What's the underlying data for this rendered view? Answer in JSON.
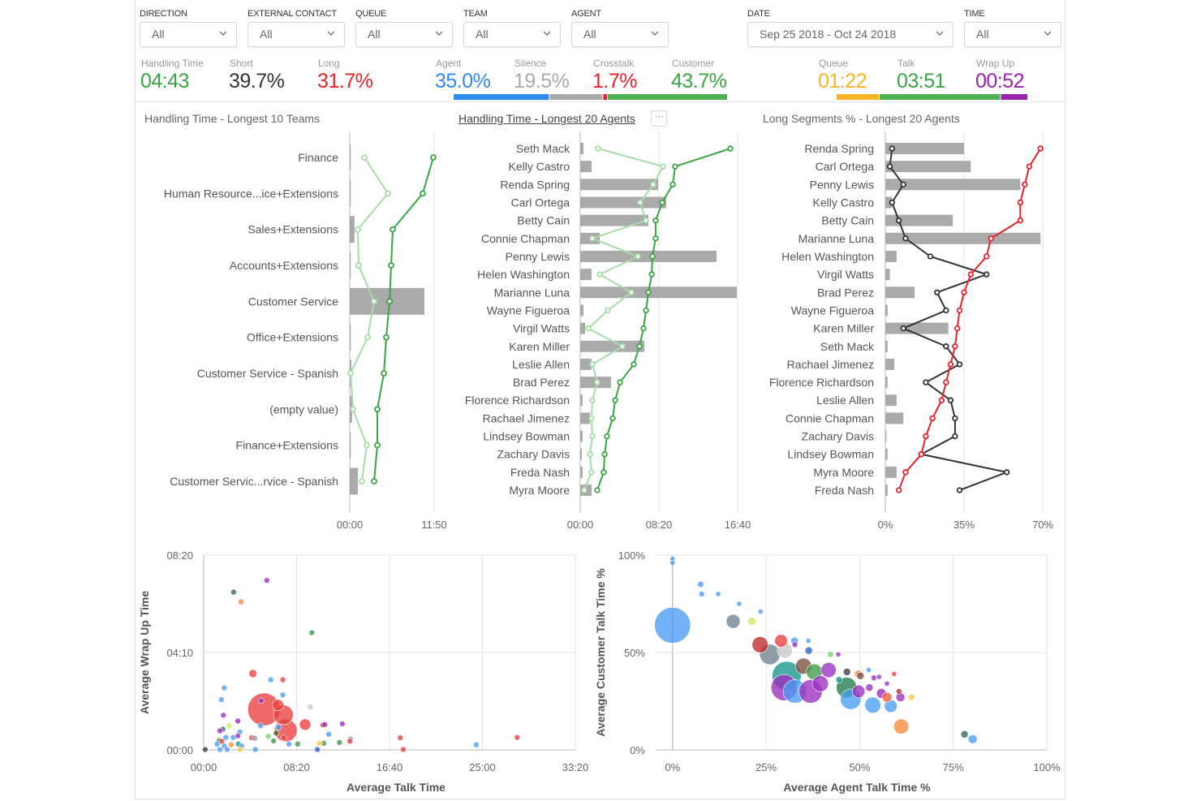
{
  "filters": [
    {
      "label": "DIRECTION",
      "value": "All"
    },
    {
      "label": "EXTERNAL CONTACT",
      "value": "All"
    },
    {
      "label": "QUEUE",
      "value": "All"
    },
    {
      "label": "TEAM",
      "value": "All"
    },
    {
      "label": "AGENT",
      "value": "All"
    },
    {
      "label": "DATE",
      "value": "Sep 25 2018 - Oct 24 2018"
    },
    {
      "label": "TIME",
      "value": "All"
    }
  ],
  "kpis": [
    {
      "label": "Handling Time",
      "value": "04:43",
      "color": "#3aa543"
    },
    {
      "label": "Short",
      "value": "39.7%",
      "color": "#333333"
    },
    {
      "label": "Long",
      "value": "31.7%",
      "color": "#e8222a"
    },
    {
      "label": "Agent",
      "value": "35.0%",
      "color": "#2f8bef"
    },
    {
      "label": "Silence",
      "value": "19.5%",
      "color": "#aaaaaa"
    },
    {
      "label": "Crosstalk",
      "value": "1.7%",
      "color": "#e8222a"
    },
    {
      "label": "Customer",
      "value": "43.7%",
      "color": "#3aa543"
    },
    {
      "label": "Queue",
      "value": "01:22",
      "color": "#fbb424"
    },
    {
      "label": "Talk",
      "value": "03:51",
      "color": "#3aa543"
    },
    {
      "label": "Wrap Up",
      "value": "00:52",
      "color": "#9b22b0"
    }
  ],
  "talk_split": [
    {
      "name": "Agent",
      "percent": 35.0,
      "color": "#2f8bef"
    },
    {
      "name": "Silence",
      "percent": 19.5,
      "color": "#aaaaaa"
    },
    {
      "name": "Crosstalk",
      "percent": 1.7,
      "color": "#e8222a"
    },
    {
      "name": "Customer",
      "percent": 43.7,
      "color": "#4caf50"
    }
  ],
  "time_split": [
    {
      "name": "Queue",
      "seconds": 82,
      "color": "#fbb424"
    },
    {
      "name": "Talk",
      "seconds": 231,
      "color": "#4caf50"
    },
    {
      "name": "Wrap Up",
      "seconds": 52,
      "color": "#9b22b0"
    }
  ],
  "more_label": "···",
  "chart_data": [
    {
      "type": "bar",
      "title": "Handling Time - Longest 10 Teams",
      "orientation": "horizontal",
      "categories": [
        "Finance",
        "Human Resource...ice+Extensions",
        "Sales+Extensions",
        "Accounts+Extensions",
        "Customer Service",
        "Office+Extensions",
        "Customer Service - Spanish",
        "(empty value)",
        "Finance+Extensions",
        "Customer Servic...rvice - Spanish"
      ],
      "bars": [
        "0:00",
        "0:05",
        "0:40",
        "0:05",
        "10:28",
        "0:05",
        "0:14",
        "0:20",
        "0:05",
        "1:08"
      ],
      "lines": [
        {
          "values": [
            "11:43",
            "10:14",
            "6:02",
            "5:48",
            "5:35",
            "5:07",
            "4:47",
            "3:52",
            "3:52",
            "3:25"
          ],
          "color": "#3aa543"
        },
        {
          "values": [
            "2:03",
            "5:21",
            "1:08",
            "1:15",
            "3:25",
            "2:30",
            "0:07",
            "0:27",
            "2:23",
            "1:42"
          ],
          "color": "#a8dca8"
        }
      ],
      "xlim": [
        "00:00",
        "11:50"
      ],
      "xticks": [
        "00:00",
        "11:50"
      ],
      "grid": true
    },
    {
      "type": "bar",
      "title": "Handling Time - Longest 20 Agents",
      "orientation": "horizontal",
      "categories": [
        "Seth Mack",
        "Kelly Castro",
        "Renda Spring",
        "Carl Ortega",
        "Betty Cain",
        "Connie Chapman",
        "Penny Lewis",
        "Helen Washington",
        "Marianne Luna",
        "Wayne Figueroa",
        "Virgil Watts",
        "Karen Miller",
        "Leslie Allen",
        "Brad Perez",
        "Florence Richardson",
        "Rachael Jimenez",
        "Lindsey Bowman",
        "Zachary Davis",
        "Freda Nash",
        "Myra Moore"
      ],
      "bars": [
        "0:21",
        "1:12",
        "8:15",
        "9:06",
        "7:13",
        "2:04",
        "14:26",
        "1:12",
        "16:35",
        "0:21",
        "0:31",
        "6:47",
        "1:12",
        "3:16",
        "0:15",
        "1:02",
        "0:15",
        "0:10",
        "0:15",
        "1:12"
      ],
      "lines": [
        {
          "values": [
            "15:54",
            "10:03",
            "9:48",
            "8:41",
            "7:59",
            "7:59",
            "7:39",
            "7:34",
            "7:13",
            "6:58",
            "6:42",
            "6:16",
            "5:40",
            "4:13",
            "3:42",
            "3:26",
            "2:50",
            "2:35",
            "2:29",
            "1:48"
          ],
          "color": "#3aa543"
        },
        {
          "values": [
            "1:53",
            "8:46",
            "7:44",
            "6:21",
            "6:58",
            "1:17",
            "6:06",
            "2:04",
            "5:25",
            "2:55",
            "0:52",
            "4:28",
            "1:17",
            "1:48",
            "1:17",
            "1:12",
            "1:17",
            "1:02",
            "1:12",
            "0:26"
          ],
          "color": "#a8dca8"
        }
      ],
      "xlim": [
        "00:00",
        "16:40"
      ],
      "xticks": [
        "00:00",
        "08:20",
        "16:40"
      ],
      "grid": true
    },
    {
      "type": "bar",
      "title": "Long Segments % - Longest 20 Agents",
      "orientation": "horizontal",
      "categories": [
        "Renda Spring",
        "Carl Ortega",
        "Penny Lewis",
        "Kelly Castro",
        "Betty Cain",
        "Marianne Luna",
        "Helen Washington",
        "Virgil Watts",
        "Brad Perez",
        "Wayne Figueroa",
        "Karen Miller",
        "Seth Mack",
        "Rachael Jimenez",
        "Florence Richardson",
        "Leslie Allen",
        "Connie Chapman",
        "Zachary Davis",
        "Lindsey Bowman",
        "Myra Moore",
        "Freda Nash"
      ],
      "bars": [
        35,
        38,
        60,
        3,
        30,
        69,
        5,
        2,
        13,
        1,
        28,
        1,
        4,
        1,
        5,
        8,
        0.5,
        1,
        5,
        1
      ],
      "lines": [
        {
          "values": [
            69,
            64,
            62,
            60,
            60,
            47,
            45,
            38,
            35,
            33,
            32,
            31,
            29,
            27,
            25,
            21,
            18,
            16,
            9,
            6
          ],
          "color": "#e8222a"
        },
        {
          "values": [
            3,
            2,
            8,
            3,
            6,
            9,
            20,
            45,
            23,
            27,
            8,
            27,
            33,
            18,
            29,
            31,
            31,
            16,
            54,
            33
          ],
          "color": "#333333"
        }
      ],
      "xlim": [
        0,
        70
      ],
      "xticks": [
        "0%",
        "35%",
        "70%"
      ],
      "grid": true
    },
    {
      "type": "scatter",
      "xlabel": "Average Talk Time",
      "ylabel": "Average Wrap Up Time",
      "xlim": [
        "00:00",
        "33:20"
      ],
      "ylim": [
        "00:00",
        "08:20"
      ],
      "xticks": [
        "00:00",
        "08:20",
        "16:40",
        "25:00",
        "33:20"
      ],
      "yticks": [
        "00:00",
        "04:10",
        "08:20"
      ],
      "grid": true,
      "points": [
        [
          "5:25",
          "1:44",
          33,
          "red"
        ],
        [
          "7:22",
          "0:50",
          16,
          "red"
        ],
        [
          "7:09",
          "1:30",
          12,
          "red"
        ],
        [
          "6:40",
          "1:55",
          4,
          "red"
        ],
        [
          "9:06",
          "1:05",
          4,
          "red"
        ],
        [
          "4:25",
          "3:16",
          2,
          "red"
        ],
        [
          "0:08",
          "0:01",
          1,
          "darkgray"
        ],
        [
          "2:41",
          "6:45",
          1,
          "darkteal"
        ],
        [
          "3:21",
          "6:20",
          1,
          "orange"
        ],
        [
          "5:40",
          "7:15",
          1,
          "purple"
        ],
        [
          "9:42",
          "5:01",
          1,
          "green"
        ],
        [
          "6:01",
          "3:00",
          1,
          "blue"
        ],
        [
          "7:06",
          "3:00",
          1,
          "red"
        ],
        [
          "1:51",
          "2:39",
          1,
          "blue"
        ],
        [
          "1:35",
          "2:09",
          1,
          "blue"
        ],
        [
          "7:06",
          "2:21",
          1,
          "blue"
        ],
        [
          "5:09",
          "2:06",
          1,
          "purple"
        ],
        [
          "9:34",
          "1:50",
          1,
          "lightgray"
        ],
        [
          "1:46",
          "1:29",
          1,
          "purple"
        ],
        [
          "3:04",
          "1:14",
          1,
          "purple"
        ],
        [
          "2:17",
          "1:02",
          1,
          "yellowgreen"
        ],
        [
          "1:43",
          "0:53",
          1,
          "darkteal"
        ],
        [
          "1:27",
          "0:49",
          1,
          "purple"
        ],
        [
          "3:15",
          "0:46",
          1,
          "blue"
        ],
        [
          "5:06",
          "1:02",
          1,
          "blue"
        ],
        [
          "6:44",
          "0:58",
          1,
          "blue"
        ],
        [
          "10:42",
          "1:04",
          1,
          "darkred"
        ],
        [
          "10:52",
          "1:05",
          1,
          "purple"
        ],
        [
          "12:26",
          "1:07",
          1,
          "purple"
        ],
        [
          "11:13",
          "0:40",
          1,
          "blue"
        ],
        [
          "13:10",
          "0:28",
          1,
          "gray"
        ],
        [
          "13:07",
          "0:22",
          1,
          "red"
        ],
        [
          "17:38",
          "0:31",
          1,
          "red"
        ],
        [
          "17:54",
          "0:01",
          1,
          "red"
        ],
        [
          "28:07",
          "0:32",
          1,
          "red"
        ],
        [
          "24:27",
          "0:13",
          1,
          "blue"
        ],
        [
          "12:11",
          "0:19",
          1,
          "green"
        ],
        [
          "10:46",
          "0:17",
          1,
          "green"
        ],
        [
          "10:23",
          "0:17",
          1,
          "yellow"
        ],
        [
          "10:12",
          "0:01",
          1,
          "darkblue"
        ],
        [
          "8:26",
          "0:15",
          1,
          "green"
        ],
        [
          "7:39",
          "0:15",
          1,
          "blue"
        ],
        [
          "7:11",
          "0:31",
          1,
          "red"
        ],
        [
          "6:16",
          "0:23",
          1,
          "green"
        ],
        [
          "5:48",
          "0:35",
          1,
          "lightgreen"
        ],
        [
          "6:30",
          "0:43",
          1,
          "olive"
        ],
        [
          "4:19",
          "0:31",
          1,
          "red"
        ],
        [
          "4:35",
          "0:30",
          1,
          "gray"
        ],
        [
          "4:38",
          "0:01",
          1,
          "blue"
        ],
        [
          "3:07",
          "0:15",
          1,
          "teal"
        ],
        [
          "3:24",
          "0:10",
          1,
          "blue"
        ],
        [
          "3:15",
          "0:01",
          1,
          "yellow"
        ],
        [
          "2:28",
          "0:13",
          1,
          "orange"
        ],
        [
          "1:59",
          "0:32",
          1,
          "blue"
        ],
        [
          "2:39",
          "0:32",
          1,
          "blue"
        ],
        [
          "1:23",
          "0:24",
          1,
          "green"
        ],
        [
          "1:38",
          "0:22",
          1,
          "red"
        ],
        [
          "1:12",
          "0:15",
          1,
          "blue"
        ],
        [
          "1:51",
          "0:10",
          1,
          "blue"
        ],
        [
          "1:27",
          "0:01",
          1,
          "blue"
        ],
        [
          "2:06",
          "0:01",
          1,
          "blue"
        ],
        [
          "3:04",
          "0:36",
          1,
          "purple"
        ]
      ]
    },
    {
      "type": "scatter",
      "xlabel": "Average Agent Talk Time %",
      "ylabel": "Average Customer Talk Time %",
      "xlim": [
        -4.5,
        100
      ],
      "ylim": [
        0,
        100
      ],
      "xticks": [
        "0%",
        "25%",
        "50%",
        "75%",
        "100%"
      ],
      "yticks": [
        "0%",
        "50%",
        "100%"
      ],
      "grid": true,
      "points": [
        [
          0,
          64,
          40,
          "blue"
        ],
        [
          30.5,
          38,
          26,
          "teal"
        ],
        [
          29.8,
          32,
          21,
          "purple"
        ],
        [
          32.7,
          30,
          17,
          "blue"
        ],
        [
          36.9,
          30,
          17,
          "purple"
        ],
        [
          26,
          49,
          13,
          "slate"
        ],
        [
          46.5,
          32,
          13,
          "darkgreen"
        ],
        [
          47.6,
          26,
          13,
          "blue"
        ],
        [
          23.4,
          54,
          8,
          "darkred"
        ],
        [
          35,
          43,
          8,
          "brown"
        ],
        [
          37.9,
          40,
          8,
          "green"
        ],
        [
          39.5,
          34,
          8,
          "purple"
        ],
        [
          53.5,
          23,
          8,
          "blue"
        ],
        [
          61.1,
          12,
          7,
          "orange"
        ],
        [
          30,
          51,
          7,
          "lightgray"
        ],
        [
          41.7,
          41,
          7,
          "purple"
        ],
        [
          16.2,
          66,
          6,
          "slate"
        ],
        [
          29,
          56,
          5,
          "red"
        ],
        [
          49.7,
          30,
          5,
          "purple"
        ],
        [
          58.3,
          22.5,
          5,
          "blue"
        ],
        [
          55.8,
          29,
          3,
          "purple"
        ],
        [
          57.3,
          27,
          3,
          "orangered"
        ],
        [
          60.9,
          27,
          2.5,
          "purple"
        ],
        [
          80.2,
          5.5,
          2.5,
          "blue"
        ],
        [
          21.2,
          66,
          2,
          "yellowgreen"
        ],
        [
          32.6,
          56,
          1.7,
          "blue"
        ],
        [
          36.4,
          51,
          1.7,
          "darkblue"
        ],
        [
          46.6,
          40,
          1.7,
          "darkgray"
        ],
        [
          49.6,
          39,
          1.7,
          "orange"
        ],
        [
          50.2,
          38,
          1.7,
          "brown"
        ],
        [
          52.6,
          32,
          1.7,
          "purple"
        ],
        [
          78,
          8,
          1.7,
          "darkteal"
        ],
        [
          63.8,
          27,
          1.3,
          "yellow"
        ],
        [
          44.5,
          36,
          1.3,
          "teal"
        ],
        [
          42.2,
          49,
          1.2,
          "lightgreen"
        ],
        [
          7.5,
          85,
          1.2,
          "blue"
        ],
        [
          7.8,
          80,
          1,
          "blue"
        ],
        [
          53.8,
          37,
          1,
          "purple"
        ],
        [
          32.7,
          54,
          1,
          "purple"
        ],
        [
          60.5,
          30,
          1,
          "darkred"
        ],
        [
          0,
          98,
          0.8,
          "blue"
        ],
        [
          0,
          96,
          0.8,
          "blue"
        ],
        [
          12.2,
          80,
          0.8,
          "blue"
        ],
        [
          17.8,
          75,
          0.8,
          "blue"
        ],
        [
          23.5,
          71,
          0.8,
          "blue"
        ],
        [
          36.3,
          56,
          0.8,
          "blue"
        ],
        [
          44.3,
          49,
          0.8,
          "purple"
        ],
        [
          52.4,
          41,
          0.8,
          "blue"
        ],
        [
          55.2,
          37.5,
          0.8,
          "purple"
        ],
        [
          57.3,
          34,
          0.8,
          "purple"
        ],
        [
          59.2,
          39,
          0.8,
          "red"
        ]
      ]
    }
  ],
  "palette": {
    "red": "#e8403e",
    "darkred": "#c0282c",
    "orangered": "#f0603a",
    "blue": "#4a9cf5",
    "darkblue": "#2a5ec8",
    "purple": "#9b30c0",
    "green": "#3c9a4a",
    "darkgreen": "#1f7a4a",
    "darkteal": "#2f6a5c",
    "teal": "#15968a",
    "orange": "#f98b3c",
    "yellow": "#f8c640",
    "yellowgreen": "#d4e660",
    "lightgreen": "#7cd36c",
    "gray": "#9a9a9a",
    "lightgray": "#c8c8c8",
    "darkgray": "#3c3c3c",
    "slate": "#6e8190",
    "olive": "#4a6a2a",
    "brown": "#7a5040"
  }
}
